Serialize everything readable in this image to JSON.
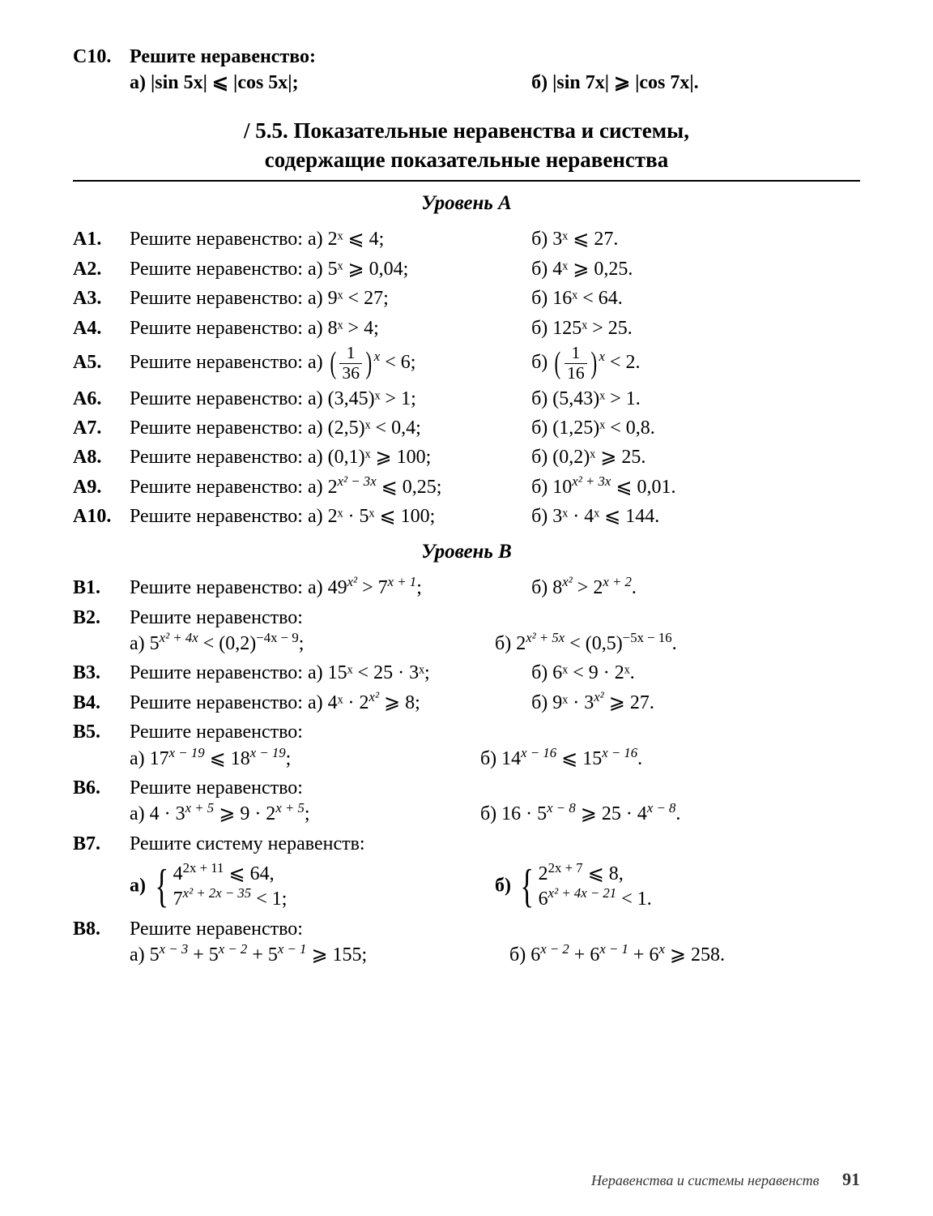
{
  "c10": {
    "label": "С10.",
    "title": "Решите неравенство:",
    "a": "а) |sin 5x| ⩽ |cos 5x|;",
    "b": "б) |sin 7x| ⩾ |cos 7x|."
  },
  "section": {
    "prefix": "/ 5.5.",
    "line1": "Показательные неравенства и системы,",
    "line2": "содержащие показательные неравенства"
  },
  "levelA": "Уровень А",
  "levelB": "Уровень В",
  "A": [
    {
      "n": "A1.",
      "t": "Решите неравенство: а) 2ˣ ⩽ 4;",
      "b": "б) 3ˣ ⩽ 27."
    },
    {
      "n": "A2.",
      "t": "Решите неравенство: а) 5ˣ ⩾ 0,04;",
      "b": "б) 4ˣ ⩾ 0,25."
    },
    {
      "n": "A3.",
      "t": "Решите неравенство: а) 9ˣ < 27;",
      "b": "б) 16ˣ < 64."
    },
    {
      "n": "A4.",
      "t": "Решите неравенство: а) 8ˣ > 4;",
      "b": "б) 125ˣ > 25."
    }
  ],
  "A5": {
    "n": "A5.",
    "t": "Решите неравенство: а)",
    "rhs_a": "< 6;",
    "rhs_b": "< 2.",
    "frac_a_n": "1",
    "frac_a_d": "36",
    "frac_b_n": "1",
    "frac_b_d": "16",
    "b_pref": "б)"
  },
  "A6to10": [
    {
      "n": "A6.",
      "t": "Решите неравенство: а) (3,45)ˣ > 1;",
      "b": "б) (5,43)ˣ > 1."
    },
    {
      "n": "A7.",
      "t": "Решите неравенство: а) (2,5)ˣ < 0,4;",
      "b": "б) (1,25)ˣ < 0,8."
    },
    {
      "n": "A8.",
      "t": "Решите неравенство: а) (0,1)ˣ ⩾ 100;",
      "b": "б) (0,2)ˣ ⩾ 25."
    }
  ],
  "A9": {
    "n": "A9.",
    "t": "Решите неравенство: а) 2",
    "exp_a": "x² − 3x",
    "tail_a": " ⩽ 0,25;",
    "b_pre": "б) 10",
    "exp_b": "x² + 3x",
    "tail_b": " ⩽ 0,01."
  },
  "A10": {
    "n": "A10.",
    "t": "Решите неравенство: а) 2ˣ · 5ˣ ⩽ 100;",
    "b": "б) 3ˣ · 4ˣ ⩽ 144."
  },
  "B1": {
    "n": "B1.",
    "t": "Решите неравенство: а) 49",
    "exp_a": "x²",
    "mid_a": " > 7",
    "exp_a2": "x + 1",
    "tail_a": ";",
    "b_pre": "б) 8",
    "exp_b": "x²",
    "mid_b": " > 2",
    "exp_b2": "x + 2",
    "tail_b": "."
  },
  "B2": {
    "n": "B2.",
    "title": "Решите неравенство:",
    "a_pre": "а)  5",
    "a_exp": "x² + 4x",
    "a_mid": " < (0,2)",
    "a_exp2": "−4x − 9",
    "a_tail": ";",
    "b_pre": "б)  2",
    "b_exp": "x² + 5x",
    "b_mid": " < (0,5)",
    "b_exp2": "−5x − 16",
    "b_tail": "."
  },
  "B3": {
    "n": "B3.",
    "t": "Решите неравенство: а) 15ˣ < 25 · 3ˣ;",
    "b": "б) 6ˣ < 9 · 2ˣ."
  },
  "B4": {
    "n": "B4.",
    "t": "Решите неравенство: а) 4ˣ · 2",
    "exp_a": "x²",
    "tail_a": " ⩾ 8;",
    "b_pre": "б) 9ˣ · 3",
    "exp_b": "x²",
    "tail_b": " ⩾ 27."
  },
  "B5": {
    "n": "B5.",
    "title": "Решите неравенство:",
    "a": "а) 17",
    "a_exp": "x − 19",
    "a_mid": " ⩽ 18",
    "a_exp2": "x − 19",
    "a_tail": ";",
    "b": "б) 14",
    "b_exp": "x − 16",
    "b_mid": " ⩽ 15",
    "b_exp2": "x − 16",
    "b_tail": "."
  },
  "B6": {
    "n": "B6.",
    "title": "Решите неравенство:",
    "a": "а) 4 · 3",
    "a_exp": "x + 5",
    "a_mid": " ⩾ 9 · 2",
    "a_exp2": "x + 5",
    "a_tail": ";",
    "b": "б) 16 · 5",
    "b_exp": "x − 8",
    "b_mid": " ⩾ 25 · 4",
    "b_exp2": "x − 8",
    "b_tail": "."
  },
  "B7": {
    "n": "B7.",
    "title": "Решите систему неравенств:",
    "a_lbl": "а)",
    "a1_pre": "4",
    "a1_exp": "2x + 11",
    "a1_tail": " ⩽ 64,",
    "a2_pre": "7",
    "a2_exp": "x² + 2x − 35",
    "a2_tail": " < 1;",
    "b_lbl": "б)",
    "b1_pre": "2",
    "b1_exp": "2x + 7",
    "b1_tail": " ⩽ 8,",
    "b2_pre": "6",
    "b2_exp": "x² + 4x − 21",
    "b2_tail": " < 1."
  },
  "B8": {
    "n": "B8.",
    "title": "Решите неравенство:",
    "a": "а) 5",
    "a_e1": "x − 3",
    "a_m1": " + 5",
    "a_e2": "x − 2",
    "a_m2": " + 5",
    "a_e3": "x − 1",
    "a_tail": " ⩾ 155;",
    "b": "б) 6",
    "b_e1": "x − 2",
    "b_m1": " + 6",
    "b_e2": "x − 1",
    "b_m2": " + 6",
    "b_e3": "x",
    "b_tail": " ⩾ 258."
  },
  "footer": {
    "text": "Неравенства и системы неравенств",
    "page": "91"
  }
}
